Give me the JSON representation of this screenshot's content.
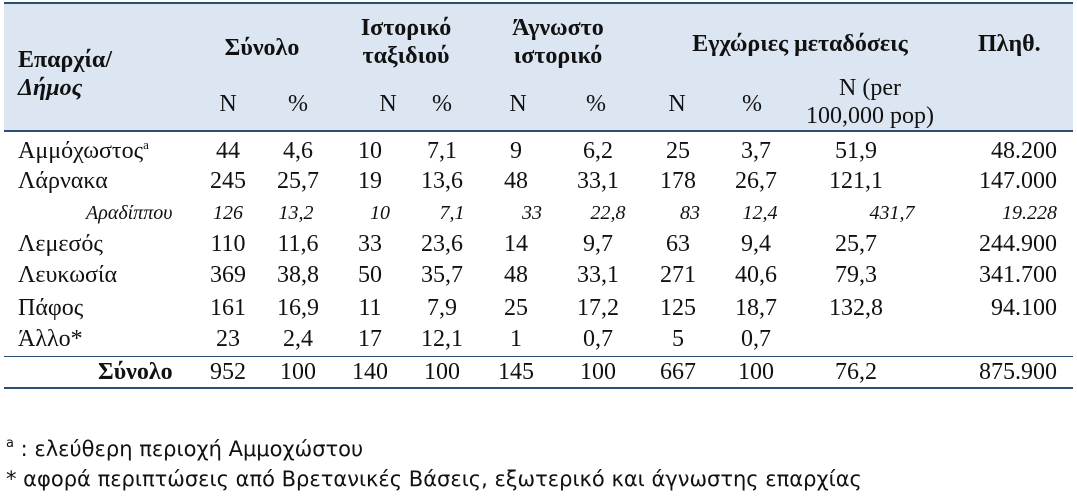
{
  "header": {
    "region_line1": "Επαρχία/",
    "region_line2": "Δήμος",
    "total": "Σύνολο",
    "travel_line1": "Ιστορικό",
    "travel_line2": "ταξιδιού",
    "unknown_line1": "Άγνωστο",
    "unknown_line2": "ιστορικό",
    "local": "Εγχώριες μεταδόσεις",
    "population": "Πληθ.",
    "n": "N",
    "pct": "%",
    "per_line1": "N (per",
    "per_line2": "100,000 pop)"
  },
  "rows": [
    {
      "name": "Αμμόχωστος",
      "sup": "a",
      "c1": "44",
      "c2": "4,6",
      "c3": "10",
      "c4": "7,1",
      "c5": "9",
      "c6": "6,2",
      "c7": "25",
      "c8": "3,7",
      "c9": "51,9",
      "c10": "48.200"
    },
    {
      "name": "Λάρνακα",
      "sup": "",
      "c1": "245",
      "c2": "25,7",
      "c3": "19",
      "c4": "13,6",
      "c5": "48",
      "c6": "33,1",
      "c7": "178",
      "c8": "26,7",
      "c9": "121,1",
      "c10": "147.000"
    },
    {
      "name": "Αραδίππου",
      "sup": "",
      "c1": "126",
      "c2": "13,2",
      "c3": "10",
      "c4": "7,1",
      "c5": "33",
      "c6": "22,8",
      "c7": "83",
      "c8": "12,4",
      "c9": "431,7",
      "c10": "19.228"
    },
    {
      "name": "Λεμεσός",
      "sup": "",
      "c1": "110",
      "c2": "11,6",
      "c3": "33",
      "c4": "23,6",
      "c5": "14",
      "c6": "9,7",
      "c7": "63",
      "c8": "9,4",
      "c9": "25,7",
      "c10": "244.900"
    },
    {
      "name": "Λευκωσία",
      "sup": "",
      "c1": "369",
      "c2": "38,8",
      "c3": "50",
      "c4": "35,7",
      "c5": "48",
      "c6": "33,1",
      "c7": "271",
      "c8": "40,6",
      "c9": "79,3",
      "c10": "341.700"
    },
    {
      "name": "Πάφος",
      "sup": "",
      "c1": "161",
      "c2": "16,9",
      "c3": "11",
      "c4": "7,9",
      "c5": "25",
      "c6": "17,2",
      "c7": "125",
      "c8": "18,7",
      "c9": "132,8",
      "c10": "94.100"
    },
    {
      "name": "Άλλο*",
      "sup": "",
      "c1": "23",
      "c2": "2,4",
      "c3": "17",
      "c4": "12,1",
      "c5": "1",
      "c6": "0,7",
      "c7": "5",
      "c8": "0,7",
      "c9": "",
      "c10": ""
    },
    {
      "name": "Σύνολο",
      "sup": "",
      "c1": "952",
      "c2": "100",
      "c3": "140",
      "c4": "100",
      "c5": "145",
      "c6": "100",
      "c7": "667",
      "c8": "100",
      "c9": "76,2",
      "c10": "875.900"
    }
  ],
  "footnotes": {
    "a_mark": "a",
    "a_text": " : ελεύθερη περιοχή Αμμοχώστου",
    "star_text": "* αφορά περιπτώσεις από Βρετανικές Βάσεις, εξωτερικό και άγνωστης επαρχίας"
  }
}
